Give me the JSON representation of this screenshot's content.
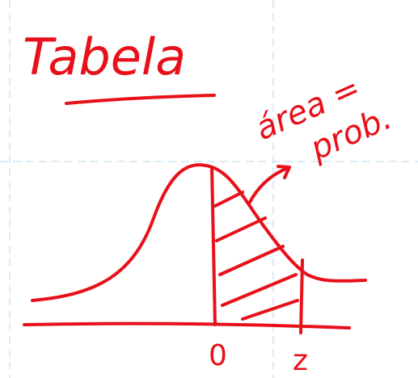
{
  "title": "Tabela",
  "annotation": [
    "área =",
    "prob."
  ],
  "axis_labels": [
    "0",
    "z"
  ]
}
